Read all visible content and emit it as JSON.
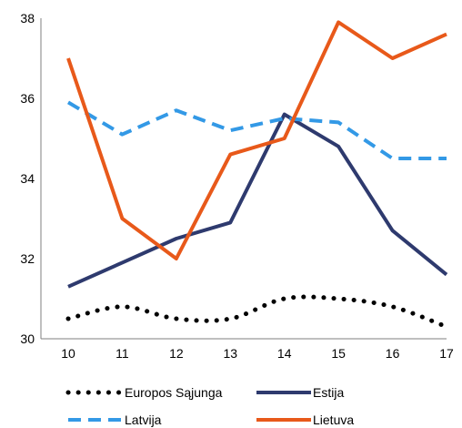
{
  "chart_data": {
    "type": "line",
    "title": "",
    "xlabel": "",
    "ylabel": "",
    "x": [
      "10",
      "11",
      "12",
      "13",
      "14",
      "15",
      "16",
      "17"
    ],
    "ylim": [
      30,
      38
    ],
    "yticks": [
      "30",
      "32",
      "34",
      "36",
      "38"
    ],
    "grid": false,
    "legend_position": "bottom",
    "series": [
      {
        "name": "Europos Sąjunga",
        "values": [
          30.5,
          30.8,
          30.5,
          30.5,
          31.0,
          31.0,
          30.8,
          30.3
        ],
        "color": "#000000",
        "style": "dotted"
      },
      {
        "name": "Estija",
        "values": [
          31.3,
          31.9,
          32.5,
          32.9,
          35.6,
          34.8,
          32.7,
          31.6
        ],
        "color": "#2E3A6E",
        "style": "solid"
      },
      {
        "name": "Latvija",
        "values": [
          35.9,
          35.1,
          35.7,
          35.2,
          35.5,
          35.4,
          34.5,
          34.5
        ],
        "color": "#3399E6",
        "style": "dashed"
      },
      {
        "name": "Lietuva",
        "values": [
          37.0,
          33.0,
          32.0,
          34.6,
          35.0,
          37.9,
          37.0,
          37.6
        ],
        "color": "#E8591A",
        "style": "solid"
      }
    ]
  }
}
